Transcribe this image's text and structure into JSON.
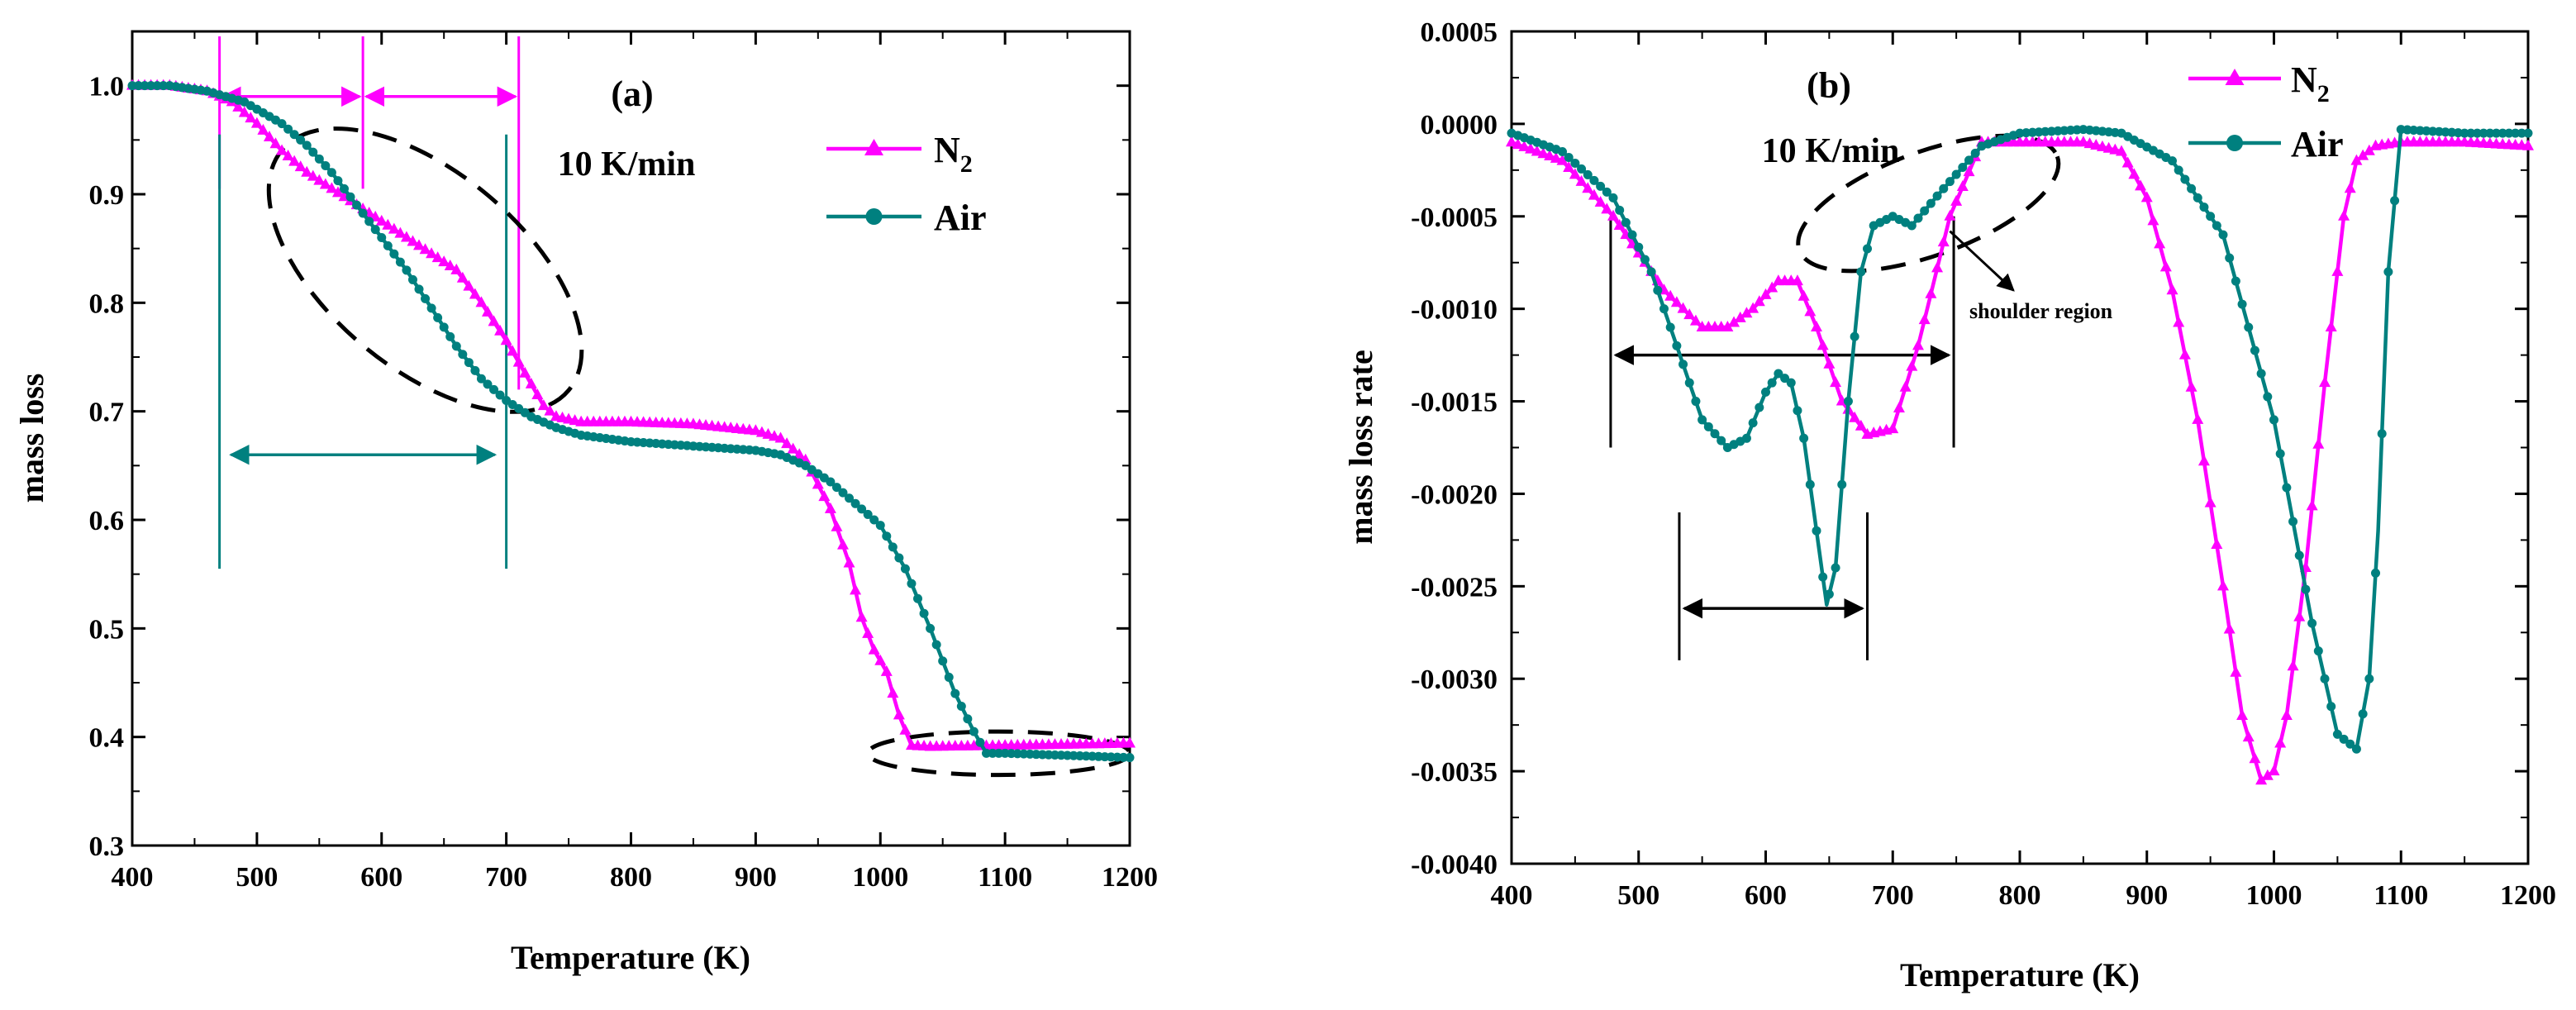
{
  "colors": {
    "n2": "#ff00ff",
    "air": "#00807f",
    "axis": "#000000",
    "annotation": "#000000"
  },
  "chart_data": [
    {
      "panel": "a",
      "type": "line",
      "panel_label": "(a)",
      "rate_label": "10 K/min",
      "xlabel": "Temperature (K)",
      "ylabel": "mass loss",
      "xlim": [
        400,
        1200
      ],
      "ylim": [
        0.3,
        1.05
      ],
      "xticks": [
        "400",
        "500",
        "600",
        "700",
        "800",
        "900",
        "1000",
        "1100",
        "1200"
      ],
      "yticks": [
        "0.3",
        "0.4",
        "0.5",
        "0.6",
        "0.7",
        "0.8",
        "0.9",
        "1.0"
      ],
      "legend": {
        "placement": "top-right",
        "n2_base": "N",
        "n2_sub": "2",
        "air": "Air"
      },
      "series": [
        {
          "name": "N2",
          "marker": "triangle",
          "color": "#ff00ff",
          "x": [
            400,
            430,
            460,
            480,
            500,
            520,
            540,
            560,
            580,
            600,
            620,
            640,
            660,
            680,
            700,
            710,
            720,
            730,
            740,
            760,
            800,
            850,
            900,
            920,
            940,
            960,
            975,
            985,
            995,
            1005,
            1015,
            1025,
            1040,
            1100,
            1150,
            1200
          ],
          "y": [
            1.0,
            1.0,
            0.995,
            0.985,
            0.965,
            0.94,
            0.92,
            0.905,
            0.89,
            0.875,
            0.86,
            0.845,
            0.83,
            0.8,
            0.765,
            0.745,
            0.725,
            0.705,
            0.695,
            0.69,
            0.69,
            0.688,
            0.682,
            0.675,
            0.655,
            0.61,
            0.56,
            0.51,
            0.48,
            0.46,
            0.42,
            0.392,
            0.391,
            0.392,
            0.393,
            0.394
          ]
        },
        {
          "name": "Air",
          "marker": "circle",
          "color": "#00807f",
          "x": [
            400,
            430,
            460,
            490,
            520,
            540,
            560,
            580,
            600,
            620,
            640,
            660,
            680,
            700,
            720,
            740,
            760,
            800,
            850,
            900,
            920,
            940,
            960,
            980,
            1000,
            1020,
            1040,
            1060,
            1075,
            1085,
            1100,
            1150,
            1200
          ],
          "y": [
            1.0,
            1.0,
            0.995,
            0.985,
            0.965,
            0.945,
            0.92,
            0.89,
            0.86,
            0.83,
            0.795,
            0.76,
            0.73,
            0.71,
            0.695,
            0.685,
            0.678,
            0.672,
            0.668,
            0.664,
            0.66,
            0.65,
            0.635,
            0.615,
            0.595,
            0.555,
            0.5,
            0.44,
            0.405,
            0.385,
            0.385,
            0.383,
            0.381
          ]
        }
      ],
      "annotations": {
        "n2_ranges": [
          [
            470,
            585
          ],
          [
            585,
            710
          ]
        ],
        "n2_arrow_y": 0.99,
        "air_range": [
          470,
          700
        ],
        "air_arrow_y": 0.66,
        "dashed_ellipses": [
          {
            "cx": 635,
            "cy": 0.83,
            "rx": 150,
            "ry": 0.09,
            "angle": 40
          },
          {
            "cx": 1095,
            "cy": 0.385,
            "rx": 105,
            "ry": 0.02,
            "angle": 0
          }
        ]
      }
    },
    {
      "panel": "b",
      "type": "line",
      "panel_label": "(b)",
      "rate_label": "10 K/min",
      "xlabel": "Temperature (K)",
      "ylabel": "mass loss rate",
      "xlim": [
        400,
        1200
      ],
      "ylim": [
        -0.004,
        0.0005
      ],
      "xticks": [
        "400",
        "500",
        "600",
        "700",
        "800",
        "900",
        "1000",
        "1100",
        "1200"
      ],
      "yticks": [
        "0.0005",
        "0.0000",
        "-0.0005",
        "-0.0010",
        "-0.0015",
        "-0.0020",
        "-0.0025",
        "-0.0030",
        "-0.0035",
        "-0.0040"
      ],
      "legend": {
        "placement": "top-right",
        "n2_base": "N",
        "n2_sub": "2",
        "air": "Air"
      },
      "shoulder_label": "shoulder region",
      "series": [
        {
          "name": "N2",
          "marker": "triangle",
          "color": "#ff00ff",
          "x": [
            400,
            440,
            480,
            520,
            550,
            570,
            590,
            610,
            625,
            640,
            660,
            680,
            700,
            720,
            745,
            770,
            800,
            850,
            880,
            900,
            920,
            940,
            960,
            975,
            990,
            1000,
            1010,
            1025,
            1040,
            1055,
            1065,
            1080,
            1100,
            1150,
            1200
          ],
          "y": [
            -0.0001,
            -0.0002,
            -0.0005,
            -0.0009,
            -0.0011,
            -0.0011,
            -0.001,
            -0.00085,
            -0.00085,
            -0.0011,
            -0.0015,
            -0.00168,
            -0.00165,
            -0.0012,
            -0.0005,
            -0.0001,
            -0.0001,
            -0.0001,
            -0.00015,
            -0.0004,
            -0.0009,
            -0.0016,
            -0.0025,
            -0.0032,
            -0.00355,
            -0.0035,
            -0.0032,
            -0.0024,
            -0.0014,
            -0.0005,
            -0.0002,
            -0.00012,
            -0.0001,
            -0.0001,
            -0.00012
          ]
        },
        {
          "name": "Air",
          "marker": "circle",
          "color": "#00807f",
          "x": [
            400,
            440,
            480,
            510,
            530,
            550,
            570,
            585,
            600,
            610,
            620,
            630,
            640,
            648,
            655,
            665,
            675,
            685,
            700,
            715,
            740,
            770,
            800,
            850,
            880,
            920,
            960,
            1000,
            1030,
            1050,
            1065,
            1075,
            1082,
            1090,
            1100,
            1150,
            1200
          ],
          "y": [
            -5e-05,
            -0.00015,
            -0.0004,
            -0.0008,
            -0.0012,
            -0.0016,
            -0.00175,
            -0.0017,
            -0.00145,
            -0.00135,
            -0.0014,
            -0.0017,
            -0.0022,
            -0.0026,
            -0.0024,
            -0.0015,
            -0.0008,
            -0.00055,
            -0.0005,
            -0.00055,
            -0.00035,
            -0.00012,
            -5e-05,
            -3e-05,
            -5e-05,
            -0.0002,
            -0.0006,
            -0.0016,
            -0.0027,
            -0.0033,
            -0.00338,
            -0.003,
            -0.0022,
            -0.0008,
            -3e-05,
            -5e-05,
            -5e-05
          ]
        }
      ],
      "annotations": {
        "wide_range": [
          478,
          748
        ],
        "wide_arrow_y": -0.00125,
        "wide_bar_y": [
          -0.0005,
          -0.00175
        ],
        "narrow_range": [
          532,
          680
        ],
        "narrow_arrow_y": -0.00262,
        "narrow_bar_y": [
          -0.0021,
          -0.0029
        ],
        "shoulder_ellipse": {
          "cx": 728,
          "cy": -0.00043,
          "rx": 108,
          "ry": 0.00028,
          "angle": -20
        },
        "shoulder_arrow_from": [
          745,
          -0.00058
        ],
        "shoulder_arrow_to": [
          795,
          -0.0009
        ]
      }
    }
  ]
}
